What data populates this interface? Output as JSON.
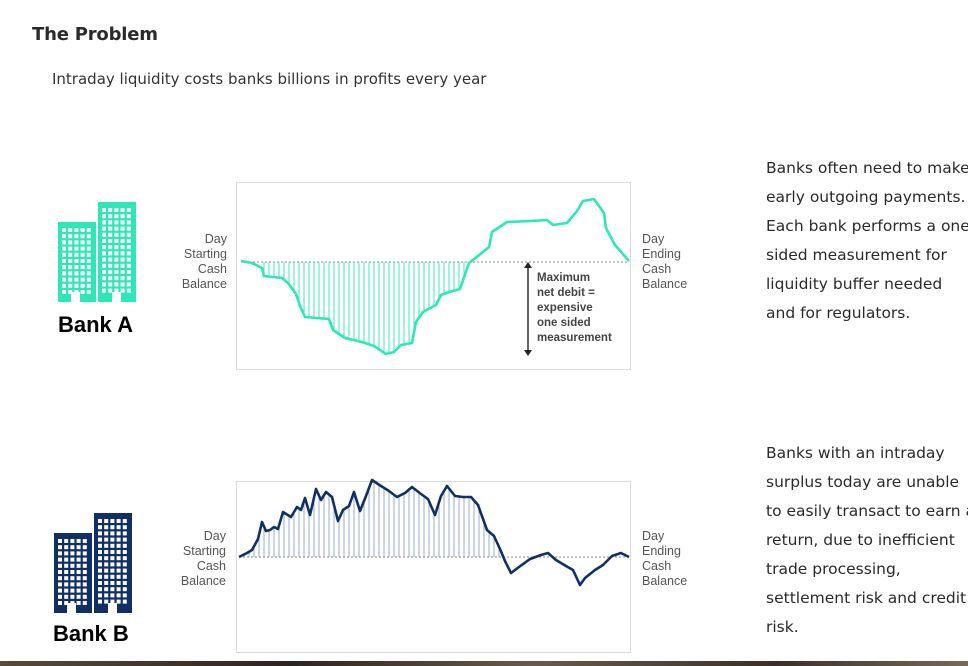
{
  "page": {
    "title": "The Problem",
    "subtitle": "Intraday liquidity costs banks billions in profits every year"
  },
  "bank_a": {
    "label": "Bank A",
    "icon_color": "#2de8b6",
    "start_label": "Day\nStarting\nCash\nBalance",
    "end_label": "Day\nEnding\nCash\nBalance",
    "annotation": "Maximum\nnet debit =\nexpensive\none sided\nmeasurement",
    "description": "Banks often need to make early outgoing payments. Each bank performs a one-sided measurement for liquidity buffer needed and for regulators.",
    "line_color": "#2de8b6"
  },
  "bank_b": {
    "label": "Bank B",
    "icon_color": "#0f2f66",
    "start_label": "Day\nStarting\nCash\nBalance",
    "end_label": "Day\nEnding\nCash\nBalance",
    "description": "Banks with an intraday surplus today are unable to easily transact to earn a return, due to inefficient trade processing, settlement risk and credit risk.",
    "line_color": "#0f2f66"
  }
}
